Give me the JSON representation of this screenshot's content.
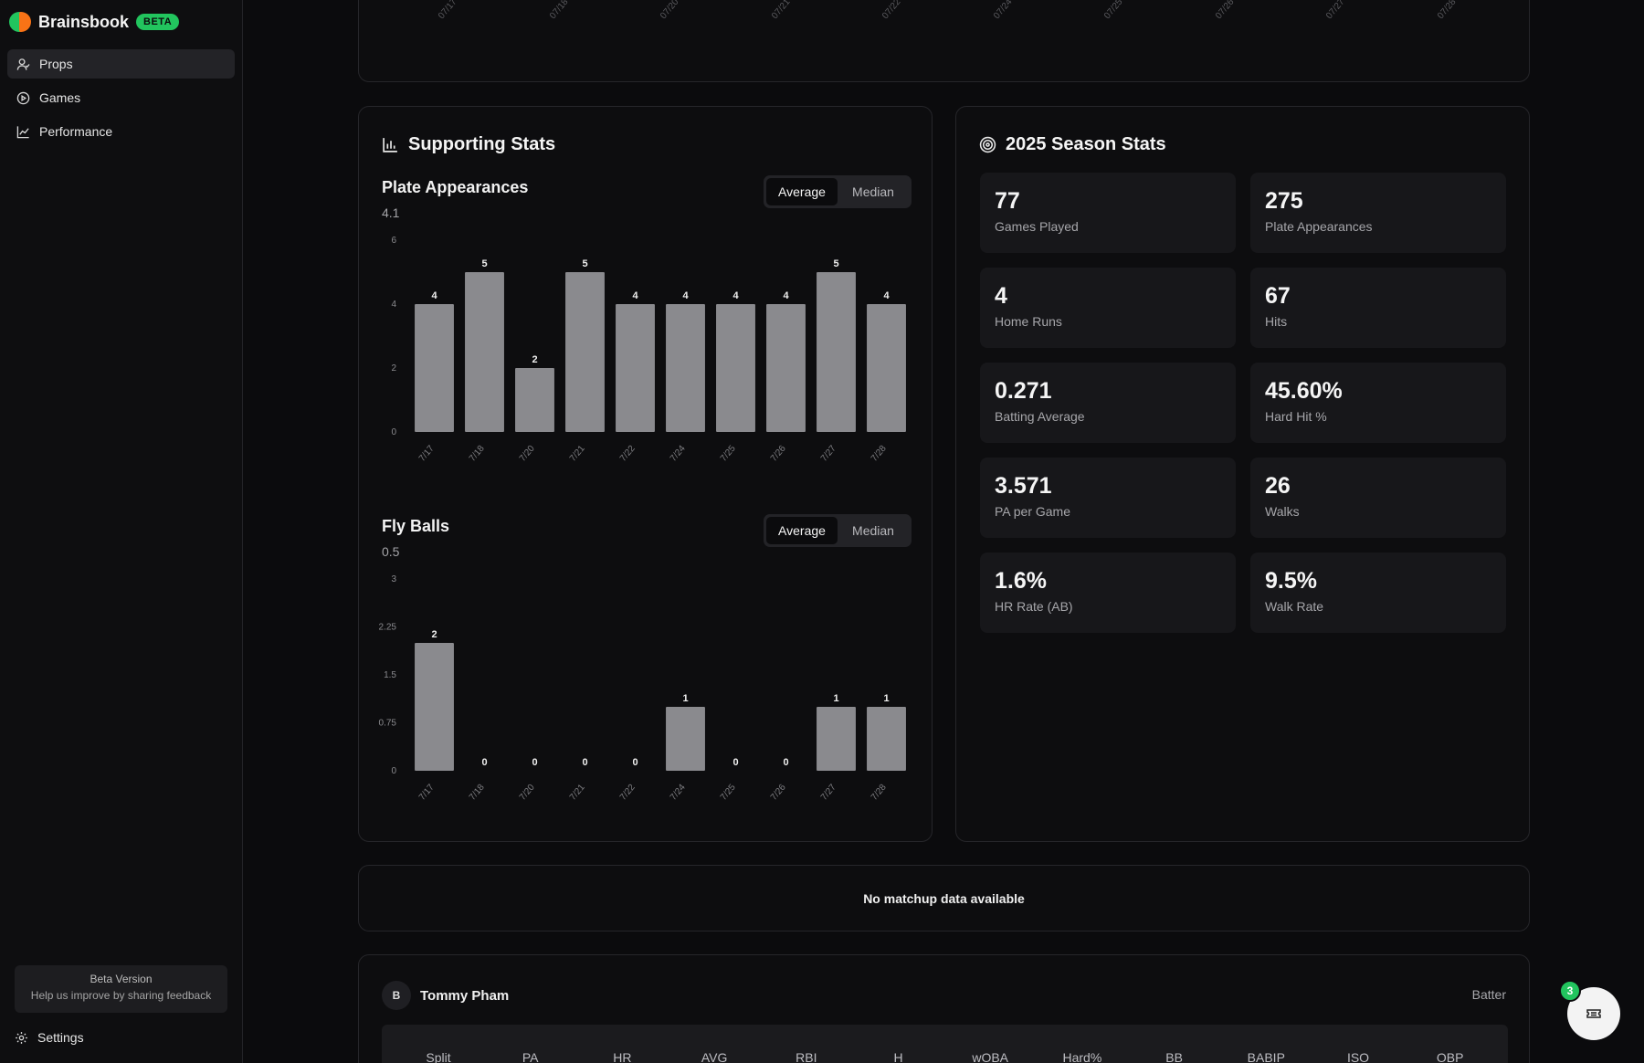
{
  "brand": {
    "name": "Brainsbook",
    "badge": "BETA"
  },
  "colors": {
    "accent": "#22c55e",
    "bar": "#8a8a8e",
    "logo_left": "#22c55e",
    "logo_right": "#f97316"
  },
  "nav": {
    "items": [
      {
        "label": "Props",
        "icon": "user-icon",
        "active": true
      },
      {
        "label": "Games",
        "icon": "play-circle-icon",
        "active": false
      },
      {
        "label": "Performance",
        "icon": "line-chart-icon",
        "active": false
      }
    ]
  },
  "beta_box": {
    "title": "Beta Version",
    "subtitle": "Help us improve by sharing feedback"
  },
  "settings_label": "Settings",
  "top_strip": {
    "dates": [
      "07/17",
      "07/18",
      "07/20",
      "07/21",
      "07/22",
      "07/24",
      "07/25",
      "07/26",
      "07/27",
      "07/28"
    ]
  },
  "supporting": {
    "title": "Supporting Stats",
    "toggle": {
      "average": "Average",
      "median": "Median",
      "selected": "Average"
    }
  },
  "chart_data": [
    {
      "type": "bar",
      "title": "Plate Appearances",
      "average": "4.1",
      "categories": [
        "7/17",
        "7/18",
        "7/20",
        "7/21",
        "7/22",
        "7/24",
        "7/25",
        "7/26",
        "7/27",
        "7/28"
      ],
      "values": [
        4,
        5,
        2,
        5,
        4,
        4,
        4,
        4,
        5,
        4
      ],
      "ylim": [
        0,
        6
      ],
      "yticks": [
        "0",
        "2",
        "4",
        "6"
      ]
    },
    {
      "type": "bar",
      "title": "Fly Balls",
      "average": "0.5",
      "categories": [
        "7/17",
        "7/18",
        "7/20",
        "7/21",
        "7/22",
        "7/24",
        "7/25",
        "7/26",
        "7/27",
        "7/28"
      ],
      "values": [
        2,
        0,
        0,
        0,
        0,
        1,
        0,
        0,
        1,
        1
      ],
      "ylim": [
        0,
        3
      ],
      "yticks": [
        "0",
        "0.75",
        "1.5",
        "2.25",
        "3"
      ]
    }
  ],
  "season": {
    "title": "2025 Season Stats",
    "stats": [
      {
        "value": "77",
        "label": "Games Played"
      },
      {
        "value": "275",
        "label": "Plate Appearances"
      },
      {
        "value": "4",
        "label": "Home Runs"
      },
      {
        "value": "67",
        "label": "Hits"
      },
      {
        "value": "0.271",
        "label": "Batting Average"
      },
      {
        "value": "45.60%",
        "label": "Hard Hit %"
      },
      {
        "value": "3.571",
        "label": "PA per Game"
      },
      {
        "value": "26",
        "label": "Walks"
      },
      {
        "value": "1.6%",
        "label": "HR Rate (AB)"
      },
      {
        "value": "9.5%",
        "label": "Walk Rate"
      }
    ]
  },
  "matchup": {
    "message": "No matchup data available"
  },
  "player": {
    "initial": "B",
    "name": "Tommy Pham",
    "role": "Batter",
    "columns": [
      "Split",
      "PA",
      "HR",
      "AVG",
      "RBI",
      "H",
      "wOBA",
      "Hard%",
      "BB",
      "BABIP",
      "ISO",
      "OBP"
    ]
  },
  "fab": {
    "badge": "3",
    "icon": "ticket-icon"
  }
}
